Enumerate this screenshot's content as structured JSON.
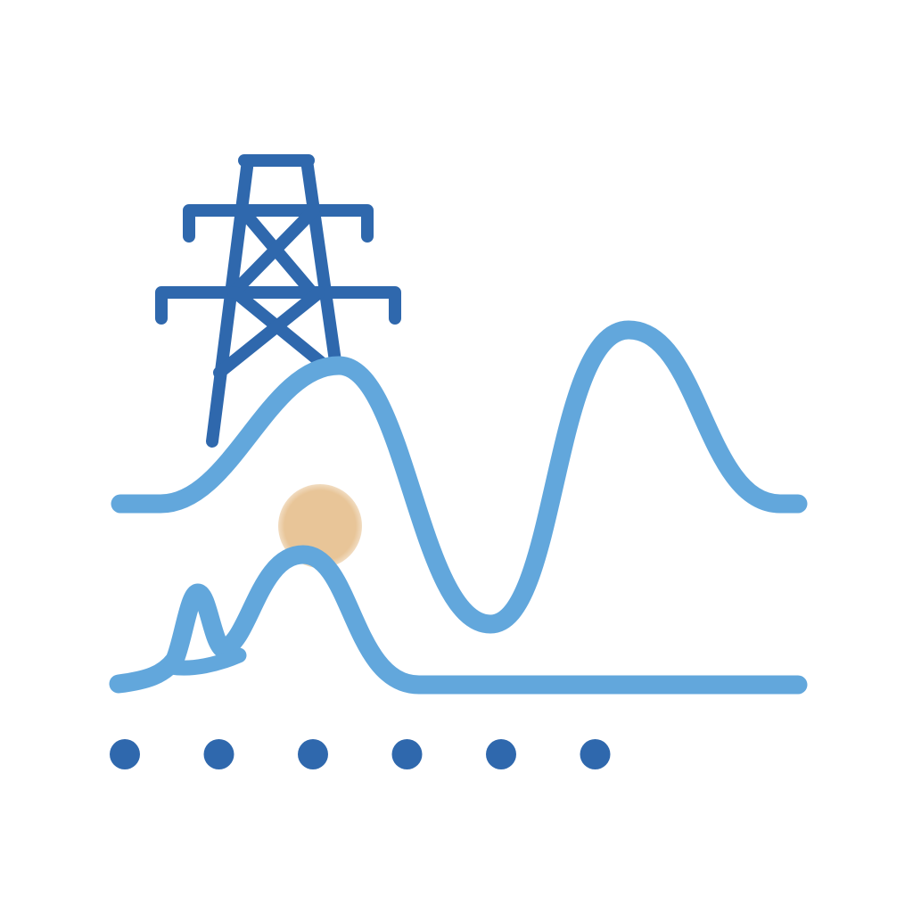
{
  "palette": {
    "background": "#ffffff",
    "tower": "#2f68ad",
    "curve": "#62a7dc",
    "sun": "#e8c598",
    "dots": "#2f68ad"
  },
  "icons": {
    "tower": "transmission-tower-icon",
    "sun": "sun-icon"
  },
  "dots": {
    "count": 6
  }
}
